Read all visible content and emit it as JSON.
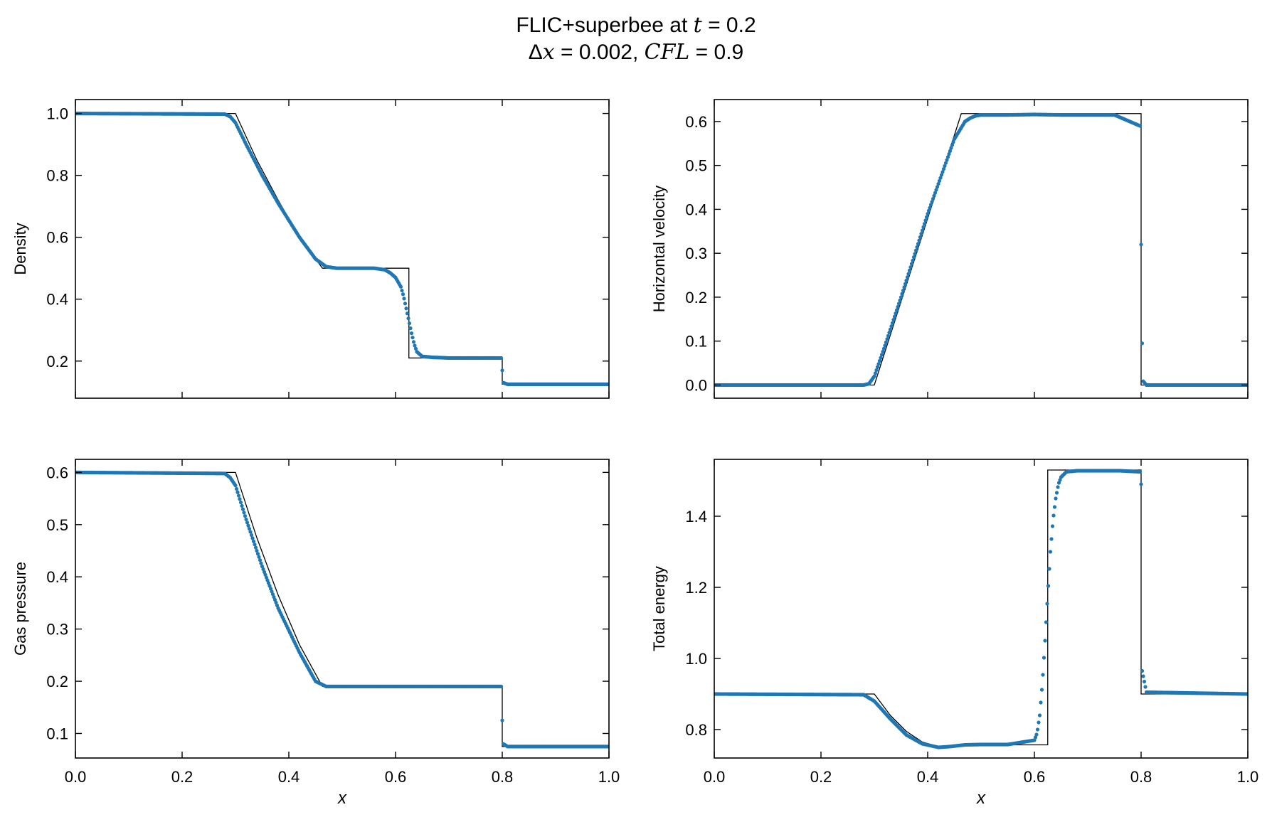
{
  "title": {
    "line1": {
      "text": "FLIC+superbee at ",
      "var": "t",
      "rest": " = 0.2"
    },
    "line2": {
      "delta": "Δ",
      "var1": "x",
      "mid": " = 0.002, ",
      "var2": "CFL",
      "rest": " = 0.9"
    }
  },
  "colors": {
    "numerical": "#1f77b4",
    "exact": "#000000",
    "axes": "#000000"
  },
  "chart_data": [
    {
      "type": "scatter",
      "ylabel": "Density",
      "xlabel": "",
      "xlim": [
        0,
        1
      ],
      "ylim": [
        0.08,
        1.045
      ],
      "xticks": [
        0.0,
        0.2,
        0.4,
        0.6,
        0.8,
        1.0
      ],
      "xtick_labels": [
        "0.0",
        "0.2",
        "0.4",
        "0.6",
        "0.8",
        "1.0"
      ],
      "show_xtick_labels": false,
      "yticks": [
        0.2,
        0.4,
        0.6,
        0.8,
        1.0
      ],
      "ytick_labels": [
        "0.2",
        "0.4",
        "0.6",
        "0.8",
        "1.0"
      ],
      "exact": {
        "x": [
          0,
          0.3,
          0.34,
          0.38,
          0.42,
          0.463,
          0.625,
          0.625,
          0.8,
          0.8,
          1
        ],
        "y": [
          1.0,
          1.0,
          0.85,
          0.72,
          0.6,
          0.5,
          0.5,
          0.21,
          0.21,
          0.125,
          0.125
        ]
      },
      "numerical": {
        "x": [
          0,
          0.28,
          0.29,
          0.3,
          0.32,
          0.35,
          0.38,
          0.42,
          0.45,
          0.47,
          0.49,
          0.52,
          0.56,
          0.58,
          0.59,
          0.6,
          0.61,
          0.615,
          0.62,
          0.625,
          0.63,
          0.635,
          0.64,
          0.65,
          0.67,
          0.7,
          0.75,
          0.798,
          0.8,
          0.802,
          0.81,
          1
        ],
        "y": [
          1.0,
          0.998,
          0.99,
          0.97,
          0.9,
          0.8,
          0.71,
          0.6,
          0.53,
          0.505,
          0.5,
          0.5,
          0.5,
          0.495,
          0.485,
          0.47,
          0.44,
          0.41,
          0.37,
          0.33,
          0.29,
          0.255,
          0.23,
          0.215,
          0.212,
          0.21,
          0.21,
          0.21,
          0.17,
          0.13,
          0.125,
          0.125
        ]
      },
      "scatter_ranges": [
        [
          0.455,
          0.51
        ],
        [
          0.58,
          0.65
        ]
      ]
    },
    {
      "type": "scatter",
      "ylabel": "Horizontal velocity",
      "xlabel": "",
      "xlim": [
        0,
        1
      ],
      "ylim": [
        -0.03,
        0.65
      ],
      "xticks": [
        0.0,
        0.2,
        0.4,
        0.6,
        0.8,
        1.0
      ],
      "xtick_labels": [
        "0.0",
        "0.2",
        "0.4",
        "0.6",
        "0.8",
        "1.0"
      ],
      "show_xtick_labels": false,
      "yticks": [
        0.0,
        0.1,
        0.2,
        0.3,
        0.4,
        0.5,
        0.6
      ],
      "ytick_labels": [
        "0.0",
        "0.1",
        "0.2",
        "0.3",
        "0.4",
        "0.5",
        "0.6"
      ],
      "exact": {
        "x": [
          0,
          0.3,
          0.463,
          0.8,
          0.8,
          1
        ],
        "y": [
          0.0,
          0.0,
          0.618,
          0.618,
          0.0,
          0.0
        ]
      },
      "numerical": {
        "x": [
          0,
          0.28,
          0.29,
          0.3,
          0.32,
          0.35,
          0.4,
          0.45,
          0.47,
          0.48,
          0.49,
          0.5,
          0.55,
          0.6,
          0.65,
          0.7,
          0.75,
          0.798,
          0.8,
          0.802,
          0.803,
          0.81,
          1
        ],
        "y": [
          0.0,
          0.0,
          0.003,
          0.02,
          0.09,
          0.2,
          0.39,
          0.56,
          0.6,
          0.608,
          0.613,
          0.615,
          0.615,
          0.616,
          0.615,
          0.615,
          0.615,
          0.59,
          0.32,
          0.095,
          0.01,
          0.0,
          0.0
        ]
      },
      "scatter_ranges": [
        [
          0.28,
          0.5
        ],
        [
          0.798,
          0.804
        ]
      ]
    },
    {
      "type": "scatter",
      "ylabel": "Gas pressure",
      "xlabel": "x",
      "xlim": [
        0,
        1
      ],
      "ylim": [
        0.053,
        0.625
      ],
      "xticks": [
        0.0,
        0.2,
        0.4,
        0.6,
        0.8,
        1.0
      ],
      "xtick_labels": [
        "0.0",
        "0.2",
        "0.4",
        "0.6",
        "0.8",
        "1.0"
      ],
      "show_xtick_labels": true,
      "yticks": [
        0.1,
        0.2,
        0.3,
        0.4,
        0.5,
        0.6
      ],
      "ytick_labels": [
        "0.1",
        "0.2",
        "0.3",
        "0.4",
        "0.5",
        "0.6"
      ],
      "exact": {
        "x": [
          0,
          0.3,
          0.34,
          0.38,
          0.42,
          0.463,
          0.8,
          0.8,
          1
        ],
        "y": [
          0.6,
          0.6,
          0.475,
          0.365,
          0.27,
          0.19,
          0.19,
          0.075,
          0.075
        ]
      },
      "numerical": {
        "x": [
          0,
          0.28,
          0.29,
          0.3,
          0.32,
          0.35,
          0.38,
          0.42,
          0.45,
          0.47,
          0.5,
          0.6,
          0.7,
          0.798,
          0.8,
          0.802,
          0.81,
          1
        ],
        "y": [
          0.6,
          0.598,
          0.59,
          0.575,
          0.51,
          0.42,
          0.34,
          0.255,
          0.2,
          0.19,
          0.19,
          0.19,
          0.19,
          0.19,
          0.125,
          0.08,
          0.075,
          0.075
        ]
      },
      "scatter_ranges": [
        [
          0.28,
          0.48
        ],
        [
          0.798,
          0.803
        ]
      ]
    },
    {
      "type": "scatter",
      "ylabel": "Total energy",
      "xlabel": "x",
      "xlim": [
        0,
        1
      ],
      "ylim": [
        0.72,
        1.56
      ],
      "xticks": [
        0.0,
        0.2,
        0.4,
        0.6,
        0.8,
        1.0
      ],
      "xtick_labels": [
        "0.0",
        "0.2",
        "0.4",
        "0.6",
        "0.8",
        "1.0"
      ],
      "show_xtick_labels": true,
      "yticks": [
        0.8,
        1.0,
        1.2,
        1.4
      ],
      "ytick_labels": [
        "0.8",
        "1.0",
        "1.2",
        "1.4"
      ],
      "exact": {
        "x": [
          0,
          0.3,
          0.33,
          0.36,
          0.39,
          0.42,
          0.44,
          0.463,
          0.625,
          0.625,
          0.8,
          0.8,
          1
        ],
        "y": [
          0.9,
          0.9,
          0.84,
          0.795,
          0.765,
          0.752,
          0.75,
          0.757,
          0.757,
          1.53,
          1.53,
          0.9,
          0.9
        ]
      },
      "numerical": {
        "x": [
          0,
          0.28,
          0.3,
          0.33,
          0.36,
          0.39,
          0.42,
          0.44,
          0.47,
          0.5,
          0.55,
          0.6,
          0.605,
          0.61,
          0.615,
          0.62,
          0.625,
          0.63,
          0.635,
          0.64,
          0.645,
          0.65,
          0.66,
          0.68,
          0.72,
          0.76,
          0.798,
          0.8,
          0.801,
          0.802,
          0.81,
          1
        ],
        "y": [
          0.9,
          0.898,
          0.88,
          0.83,
          0.785,
          0.76,
          0.75,
          0.752,
          0.757,
          0.758,
          0.758,
          0.77,
          0.79,
          0.84,
          0.93,
          1.05,
          1.18,
          1.3,
          1.39,
          1.45,
          1.49,
          1.51,
          1.525,
          1.528,
          1.528,
          1.528,
          1.525,
          1.49,
          1.17,
          0.965,
          0.905,
          0.9
        ]
      },
      "scatter_ranges": [
        [
          0.59,
          0.66
        ],
        [
          0.798,
          0.803
        ]
      ]
    }
  ]
}
